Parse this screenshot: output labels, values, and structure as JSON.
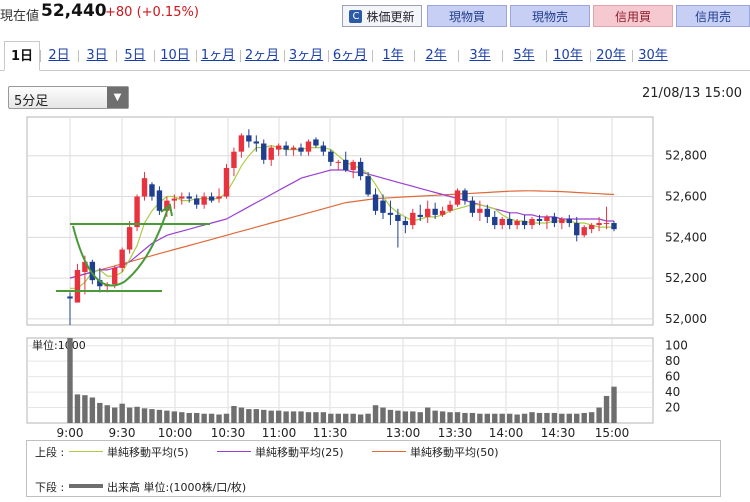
{
  "header": {
    "label": "現在値",
    "price": "52,440",
    "change": "+80 (+0.15%)",
    "buttons": {
      "update": "株価更新",
      "genbutsu_buy": "現物買",
      "genbutsu_sell": "現物売",
      "shinyo_buy": "信用買",
      "shinyo_sell": "信用売"
    }
  },
  "tabs": [
    {
      "label": "1日",
      "active": true
    },
    {
      "label": "2日"
    },
    {
      "label": "3日"
    },
    {
      "label": "5日"
    },
    {
      "label": "10日"
    },
    {
      "label": "1ヶ月"
    },
    {
      "label": "2ヶ月"
    },
    {
      "label": "3ヶ月"
    },
    {
      "label": "6ヶ月"
    },
    {
      "label": "1年"
    },
    {
      "label": "2年"
    },
    {
      "label": "3年"
    },
    {
      "label": "5年"
    },
    {
      "label": "10年"
    },
    {
      "label": "20年"
    },
    {
      "label": "30年"
    }
  ],
  "interval_select": {
    "value": "5分足"
  },
  "datetime": "21/08/13 15:00",
  "chart_data": {
    "type": "candlestick",
    "price_axis": {
      "ticks": [
        52000,
        52200,
        52400,
        52600,
        52800
      ],
      "tick_labels": [
        "52,000",
        "52,200",
        "52,400",
        "52,600",
        "52,800"
      ],
      "ylim": [
        51970,
        52990
      ]
    },
    "time_labels": [
      "9:00",
      "9:30",
      "10:00",
      "10:30",
      "11:00",
      "11:30",
      "13:00",
      "13:30",
      "14:00",
      "14:30",
      "15:00"
    ],
    "candles": [
      {
        "o": 52110,
        "h": 52130,
        "l": 51970,
        "c": 52100
      },
      {
        "o": 52080,
        "h": 52270,
        "l": 52080,
        "c": 52240
      },
      {
        "o": 52230,
        "h": 52310,
        "l": 52120,
        "c": 52280
      },
      {
        "o": 52280,
        "h": 52290,
        "l": 52170,
        "c": 52190
      },
      {
        "o": 52190,
        "h": 52250,
        "l": 52130,
        "c": 52160
      },
      {
        "o": 52160,
        "h": 52180,
        "l": 52130,
        "c": 52170
      },
      {
        "o": 52170,
        "h": 52260,
        "l": 52150,
        "c": 52250
      },
      {
        "o": 52250,
        "h": 52350,
        "l": 52230,
        "c": 52340
      },
      {
        "o": 52340,
        "h": 52480,
        "l": 52320,
        "c": 52450
      },
      {
        "o": 52450,
        "h": 52610,
        "l": 52430,
        "c": 52600
      },
      {
        "o": 52600,
        "h": 52720,
        "l": 52580,
        "c": 52690
      },
      {
        "o": 52660,
        "h": 52670,
        "l": 52580,
        "c": 52600
      },
      {
        "o": 52630,
        "h": 52650,
        "l": 52510,
        "c": 52530
      },
      {
        "o": 52530,
        "h": 52600,
        "l": 52500,
        "c": 52580
      },
      {
        "o": 52580,
        "h": 52610,
        "l": 52540,
        "c": 52590
      },
      {
        "o": 52590,
        "h": 52620,
        "l": 52560,
        "c": 52600
      },
      {
        "o": 52600,
        "h": 52620,
        "l": 52570,
        "c": 52590
      },
      {
        "o": 52590,
        "h": 52610,
        "l": 52540,
        "c": 52560
      },
      {
        "o": 52560,
        "h": 52620,
        "l": 52540,
        "c": 52600
      },
      {
        "o": 52600,
        "h": 52620,
        "l": 52570,
        "c": 52580
      },
      {
        "o": 52590,
        "h": 52640,
        "l": 52570,
        "c": 52600
      },
      {
        "o": 52600,
        "h": 52760,
        "l": 52590,
        "c": 52740
      },
      {
        "o": 52740,
        "h": 52840,
        "l": 52700,
        "c": 52820
      },
      {
        "o": 52820,
        "h": 52910,
        "l": 52790,
        "c": 52900
      },
      {
        "o": 52900,
        "h": 52930,
        "l": 52840,
        "c": 52870
      },
      {
        "o": 52870,
        "h": 52900,
        "l": 52820,
        "c": 52860
      },
      {
        "o": 52860,
        "h": 52880,
        "l": 52760,
        "c": 52780
      },
      {
        "o": 52780,
        "h": 52850,
        "l": 52750,
        "c": 52840
      },
      {
        "o": 52830,
        "h": 52860,
        "l": 52800,
        "c": 52850
      },
      {
        "o": 52850,
        "h": 52870,
        "l": 52800,
        "c": 52830
      },
      {
        "o": 52830,
        "h": 52850,
        "l": 52800,
        "c": 52840
      },
      {
        "o": 52840,
        "h": 52860,
        "l": 52800,
        "c": 52820
      },
      {
        "o": 52820,
        "h": 52880,
        "l": 52800,
        "c": 52870
      },
      {
        "o": 52880,
        "h": 52890,
        "l": 52840,
        "c": 52850
      },
      {
        "o": 52850,
        "h": 52870,
        "l": 52800,
        "c": 52820
      },
      {
        "o": 52820,
        "h": 52830,
        "l": 52750,
        "c": 52770
      },
      {
        "o": 52770,
        "h": 52780,
        "l": 52730,
        "c": 52770
      },
      {
        "o": 52780,
        "h": 52820,
        "l": 52720,
        "c": 52730
      },
      {
        "o": 52730,
        "h": 52780,
        "l": 52690,
        "c": 52770
      },
      {
        "o": 52770,
        "h": 52790,
        "l": 52680,
        "c": 52700
      },
      {
        "o": 52700,
        "h": 52720,
        "l": 52600,
        "c": 52610
      },
      {
        "o": 52610,
        "h": 52640,
        "l": 52510,
        "c": 52530
      },
      {
        "o": 52580,
        "h": 52610,
        "l": 52490,
        "c": 52520
      },
      {
        "o": 52520,
        "h": 52580,
        "l": 52460,
        "c": 52510
      },
      {
        "o": 52510,
        "h": 52540,
        "l": 52350,
        "c": 52480
      },
      {
        "o": 52480,
        "h": 52500,
        "l": 52420,
        "c": 52460
      },
      {
        "o": 52460,
        "h": 52540,
        "l": 52440,
        "c": 52520
      },
      {
        "o": 52510,
        "h": 52560,
        "l": 52480,
        "c": 52500
      },
      {
        "o": 52500,
        "h": 52580,
        "l": 52470,
        "c": 52540
      },
      {
        "o": 52540,
        "h": 52570,
        "l": 52490,
        "c": 52510
      },
      {
        "o": 52510,
        "h": 52550,
        "l": 52500,
        "c": 52530
      },
      {
        "o": 52530,
        "h": 52580,
        "l": 52520,
        "c": 52560
      },
      {
        "o": 52560,
        "h": 52640,
        "l": 52550,
        "c": 52630
      },
      {
        "o": 52630,
        "h": 52640,
        "l": 52560,
        "c": 52580
      },
      {
        "o": 52580,
        "h": 52600,
        "l": 52500,
        "c": 52520
      },
      {
        "o": 52520,
        "h": 52580,
        "l": 52480,
        "c": 52540
      },
      {
        "o": 52540,
        "h": 52560,
        "l": 52470,
        "c": 52500
      },
      {
        "o": 52500,
        "h": 52530,
        "l": 52440,
        "c": 52460
      },
      {
        "o": 52460,
        "h": 52500,
        "l": 52440,
        "c": 52490
      },
      {
        "o": 52490,
        "h": 52520,
        "l": 52440,
        "c": 52460
      },
      {
        "o": 52460,
        "h": 52490,
        "l": 52440,
        "c": 52480
      },
      {
        "o": 52480,
        "h": 52510,
        "l": 52440,
        "c": 52460
      },
      {
        "o": 52460,
        "h": 52500,
        "l": 52440,
        "c": 52490
      },
      {
        "o": 52490,
        "h": 52510,
        "l": 52460,
        "c": 52480
      },
      {
        "o": 52480,
        "h": 52510,
        "l": 52440,
        "c": 52500
      },
      {
        "o": 52500,
        "h": 52520,
        "l": 52450,
        "c": 52470
      },
      {
        "o": 52470,
        "h": 52500,
        "l": 52440,
        "c": 52490
      },
      {
        "o": 52490,
        "h": 52510,
        "l": 52450,
        "c": 52470
      },
      {
        "o": 52470,
        "h": 52500,
        "l": 52380,
        "c": 52410
      },
      {
        "o": 52410,
        "h": 52460,
        "l": 52400,
        "c": 52450
      },
      {
        "o": 52440,
        "h": 52470,
        "l": 52420,
        "c": 52460
      },
      {
        "o": 52460,
        "h": 52500,
        "l": 52430,
        "c": 52470
      },
      {
        "o": 52470,
        "h": 52550,
        "l": 52440,
        "c": 52470
      },
      {
        "o": 52470,
        "h": 52480,
        "l": 52430,
        "c": 52440
      }
    ],
    "ma5": [
      52150,
      52150,
      52180,
      52230,
      52240,
      52210,
      52210,
      52230,
      52290,
      52360,
      52470,
      52530,
      52570,
      52600,
      52600,
      52580,
      52580,
      52590,
      52590,
      52590,
      52590,
      52620,
      52680,
      52750,
      52800,
      52840,
      52840,
      52850,
      52840,
      52830,
      52830,
      52830,
      52840,
      52840,
      52840,
      52830,
      52800,
      52770,
      52750,
      52740,
      52710,
      52660,
      52600,
      52550,
      52520,
      52500,
      52480,
      52490,
      52500,
      52500,
      52510,
      52530,
      52540,
      52550,
      52560,
      52560,
      52550,
      52540,
      52510,
      52490,
      52480,
      52480,
      52470,
      52470,
      52470,
      52480,
      52480,
      52480,
      52470,
      52470,
      52460,
      52450,
      52450,
      52450
    ],
    "ma25": [
      52200,
      52210,
      52220,
      52230,
      52240,
      52240,
      52250,
      52260,
      52280,
      52310,
      52340,
      52370,
      52390,
      52410,
      52420,
      52430,
      52440,
      52450,
      52460,
      52470,
      52480,
      52490,
      52510,
      52530,
      52550,
      52570,
      52590,
      52610,
      52630,
      52650,
      52670,
      52690,
      52700,
      52710,
      52720,
      52730,
      52730,
      52730,
      52720,
      52720,
      52710,
      52700,
      52690,
      52680,
      52670,
      52660,
      52650,
      52640,
      52630,
      52620,
      52610,
      52600,
      52590,
      52580,
      52570,
      52560,
      52550,
      52540,
      52530,
      52520,
      52520,
      52510,
      52510,
      52500,
      52500,
      52500,
      52490,
      52490,
      52490,
      52490,
      52490,
      52490,
      52480,
      52480
    ],
    "ma50": [
      52200,
      52210,
      52220,
      52230,
      52240,
      52250,
      52260,
      52270,
      52280,
      52290,
      52300,
      52310,
      52320,
      52330,
      52340,
      52350,
      52360,
      52370,
      52380,
      52390,
      52400,
      52410,
      52420,
      52430,
      52440,
      52450,
      52460,
      52470,
      52480,
      52490,
      52500,
      52510,
      52520,
      52530,
      52540,
      52550,
      52560,
      52570,
      52575,
      52580,
      52585,
      52590,
      52592,
      52594,
      52596,
      52598,
      52600,
      52602,
      52604,
      52606,
      52608,
      52610,
      52612,
      52614,
      52616,
      52618,
      52620,
      52622,
      52624,
      52626,
      52627,
      52628,
      52628,
      52627,
      52626,
      52625,
      52624,
      52622,
      52620,
      52618,
      52616,
      52614,
      52612,
      52610
    ],
    "volume_axis": {
      "ticks": [
        20,
        40,
        60,
        80,
        100
      ],
      "ylim": [
        0,
        110
      ],
      "unit_label": "単位:1000"
    },
    "volume": [
      110,
      37,
      36,
      33,
      26,
      23,
      20,
      25,
      20,
      21,
      19,
      18,
      17,
      16,
      15,
      14,
      13,
      13,
      12,
      12,
      11,
      12,
      22,
      20,
      18,
      18,
      17,
      16,
      16,
      15,
      15,
      15,
      14,
      14,
      14,
      12,
      12,
      12,
      12,
      11,
      12,
      23,
      20,
      17,
      16,
      15,
      15,
      14,
      20,
      16,
      15,
      14,
      14,
      13,
      13,
      12,
      12,
      12,
      12,
      12,
      11,
      12,
      14,
      13,
      13,
      13,
      12,
      12,
      12,
      13,
      14,
      20,
      35,
      47
    ]
  },
  "legend": {
    "upper_label": "上段 :",
    "lower_label": "下段 :",
    "ma5_label": "単純移動平均(5)",
    "ma25_label": "単純移動平均(25)",
    "ma50_label": "単純移動平均(50)",
    "volume_label": "出来高 単位:(1000株/口/枚)",
    "colors": {
      "up": "#e8333f",
      "down": "#1e3e8f",
      "ma5": "#aacc44",
      "ma25": "#9a3fd1",
      "ma50": "#e06a3a",
      "volume": "#6e6e6e",
      "pattern": "#4a9a3a"
    }
  }
}
